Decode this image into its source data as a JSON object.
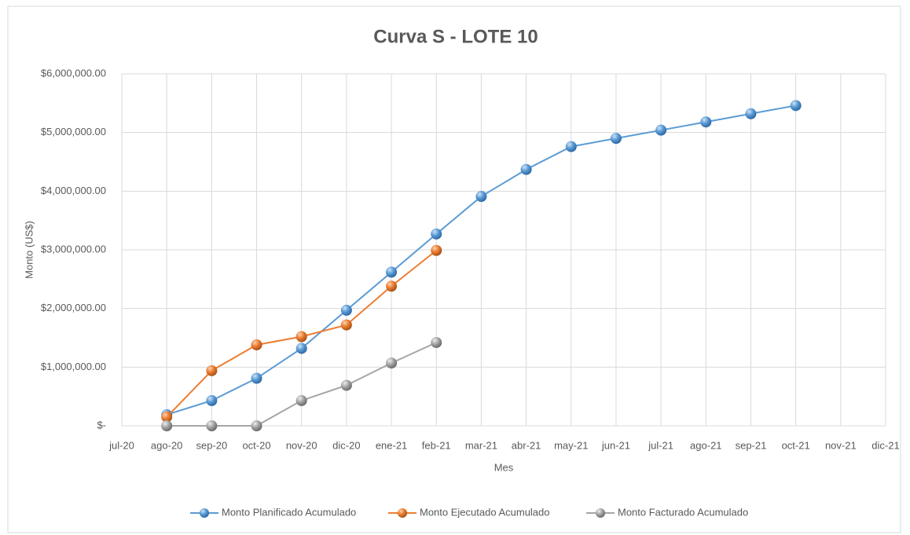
{
  "chart_data": {
    "type": "line",
    "title": "Curva S - LOTE 10",
    "y_label": "Monto (US$)",
    "x_label": "Mes",
    "categories": [
      "jul-20",
      "ago-20",
      "sep-20",
      "oct-20",
      "nov-20",
      "dic-20",
      "ene-21",
      "feb-21",
      "mar-21",
      "abr-21",
      "may-21",
      "jun-21",
      "jul-21",
      "ago-21",
      "sep-21",
      "oct-21",
      "nov-21",
      "dic-21"
    ],
    "series": [
      {
        "name": "Monto Planificado Acumulado",
        "color": "#5b9bd5",
        "values": [
          null,
          190000,
          430000,
          810000,
          1320000,
          1970000,
          2620000,
          3270000,
          3910000,
          4370000,
          4760000,
          4900000,
          5040000,
          5180000,
          5320000,
          5460000,
          null,
          null
        ]
      },
      {
        "name": "Monto Ejecutado Acumulado",
        "color": "#ed7d31",
        "values": [
          null,
          150000,
          940000,
          1380000,
          1520000,
          1720000,
          2380000,
          2990000,
          null,
          null,
          null,
          null,
          null,
          null,
          null,
          null,
          null,
          null
        ]
      },
      {
        "name": "Monto Facturado Acumulado",
        "color": "#a5a5a5",
        "values": [
          null,
          0,
          0,
          0,
          430000,
          690000,
          1070000,
          1420000,
          null,
          null,
          null,
          null,
          null,
          null,
          null,
          null,
          null,
          null
        ]
      }
    ],
    "ylim": [
      0,
      6000000
    ],
    "yticks": [
      {
        "value": 0,
        "label": "$-"
      },
      {
        "value": 1000000,
        "label": "$1,000,000.00"
      },
      {
        "value": 2000000,
        "label": "$2,000,000.00"
      },
      {
        "value": 3000000,
        "label": "$3,000,000.00"
      },
      {
        "value": 4000000,
        "label": "$4,000,000.00"
      },
      {
        "value": 5000000,
        "label": "$5,000,000.00"
      },
      {
        "value": 6000000,
        "label": "$6,000,000.00"
      }
    ],
    "grid": true,
    "legend": "bottom"
  }
}
